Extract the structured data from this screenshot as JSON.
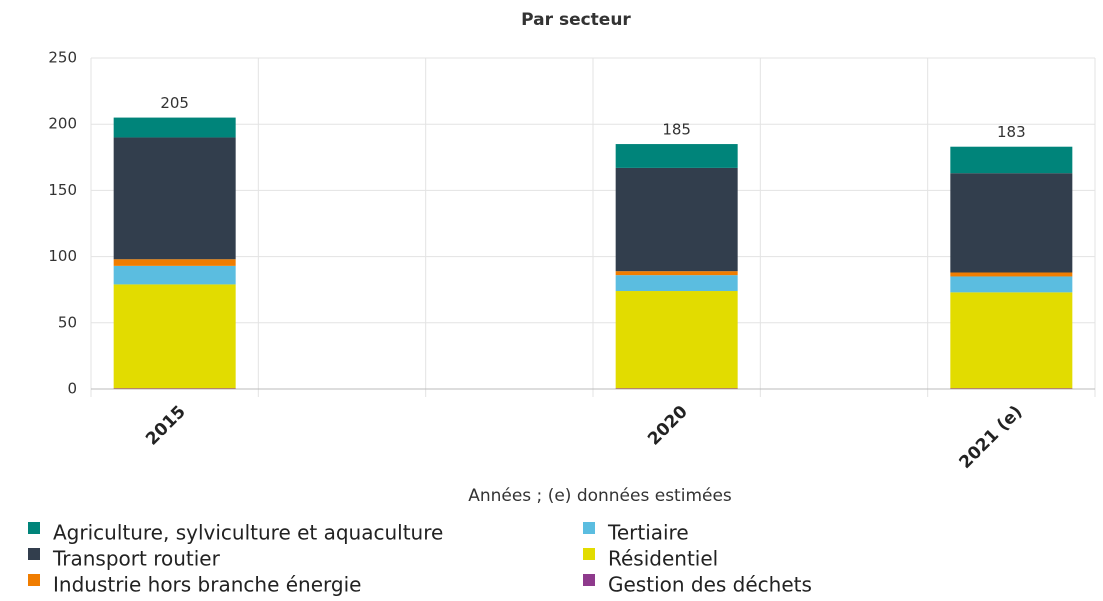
{
  "chart_data": {
    "type": "stacked_bar",
    "title": "Par secteur",
    "x_label": "Années ; (e) données estimées",
    "categories": [
      "2015",
      null,
      null,
      "2020",
      null,
      "2021 (e)"
    ],
    "series": [
      {
        "name": "Agriculture, sylviculture et aquaculture",
        "color": "#00847a",
        "values": [
          15,
          null,
          null,
          18,
          null,
          20
        ]
      },
      {
        "name": "Transport routier",
        "color": "#323e4d",
        "values": [
          92,
          null,
          null,
          78,
          null,
          75
        ]
      },
      {
        "name": "Industrie hors branche énergie",
        "color": "#f07d00",
        "values": [
          5,
          null,
          null,
          3,
          null,
          3
        ]
      },
      {
        "name": "Tertiaire",
        "color": "#5bbde0",
        "values": [
          14,
          null,
          null,
          12,
          null,
          12
        ]
      },
      {
        "name": "Résidentiel",
        "color": "#e2dc00",
        "values": [
          78.5,
          null,
          null,
          73.5,
          null,
          72.5
        ]
      },
      {
        "name": "Gestion des déchets",
        "color": "#8e3a8c",
        "values": [
          0.5,
          null,
          null,
          0.5,
          null,
          0.5
        ]
      }
    ],
    "totals": [
      205,
      null,
      null,
      185,
      null,
      183
    ],
    "ylim": [
      0,
      250
    ],
    "yticks": [
      0,
      50,
      100,
      150,
      200,
      250
    ],
    "grid": true
  }
}
